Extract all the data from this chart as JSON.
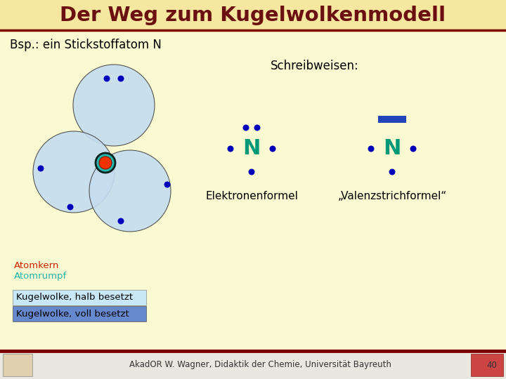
{
  "title": "Der Weg zum Kugelwolkenmodell",
  "title_color": "#6B1010",
  "title_bg": "#F5E6A0",
  "slide_bg": "#FAFAD2",
  "subtitle": "Bsp.: ein Stickstoffatom N",
  "schreibweisen_label": "Schreibweisen:",
  "elektronenformel_label": "Elektronenformel",
  "valenzstrich_label": "„Valenzstrichformel“",
  "legend_atomkern": "Atomkern",
  "legend_atomrumpf": "Atomrumpf",
  "legend_halb": "Kugelwolke, halb besetzt",
  "legend_voll": "Kugelwolke, voll besetzt",
  "atomkern_color": "#EE3300",
  "atomrumpf_color": "#20B2AA",
  "legend_atomkern_color": "#CC2200",
  "legend_atomrumpf_color": "#20B2AA",
  "halb_bg": "#C8E8F8",
  "voll_bg": "#6688CC",
  "footer_text": "AkadOR W. Wagner, Didaktik der Chemie, Universität Bayreuth",
  "page_number": "40",
  "header_line_color": "#7B0000",
  "N_color": "#009977",
  "dot_color": "#0000BB",
  "bar_color": "#2244BB",
  "sphere_fill": "#C5DCF0",
  "sphere_edge": "#444444"
}
